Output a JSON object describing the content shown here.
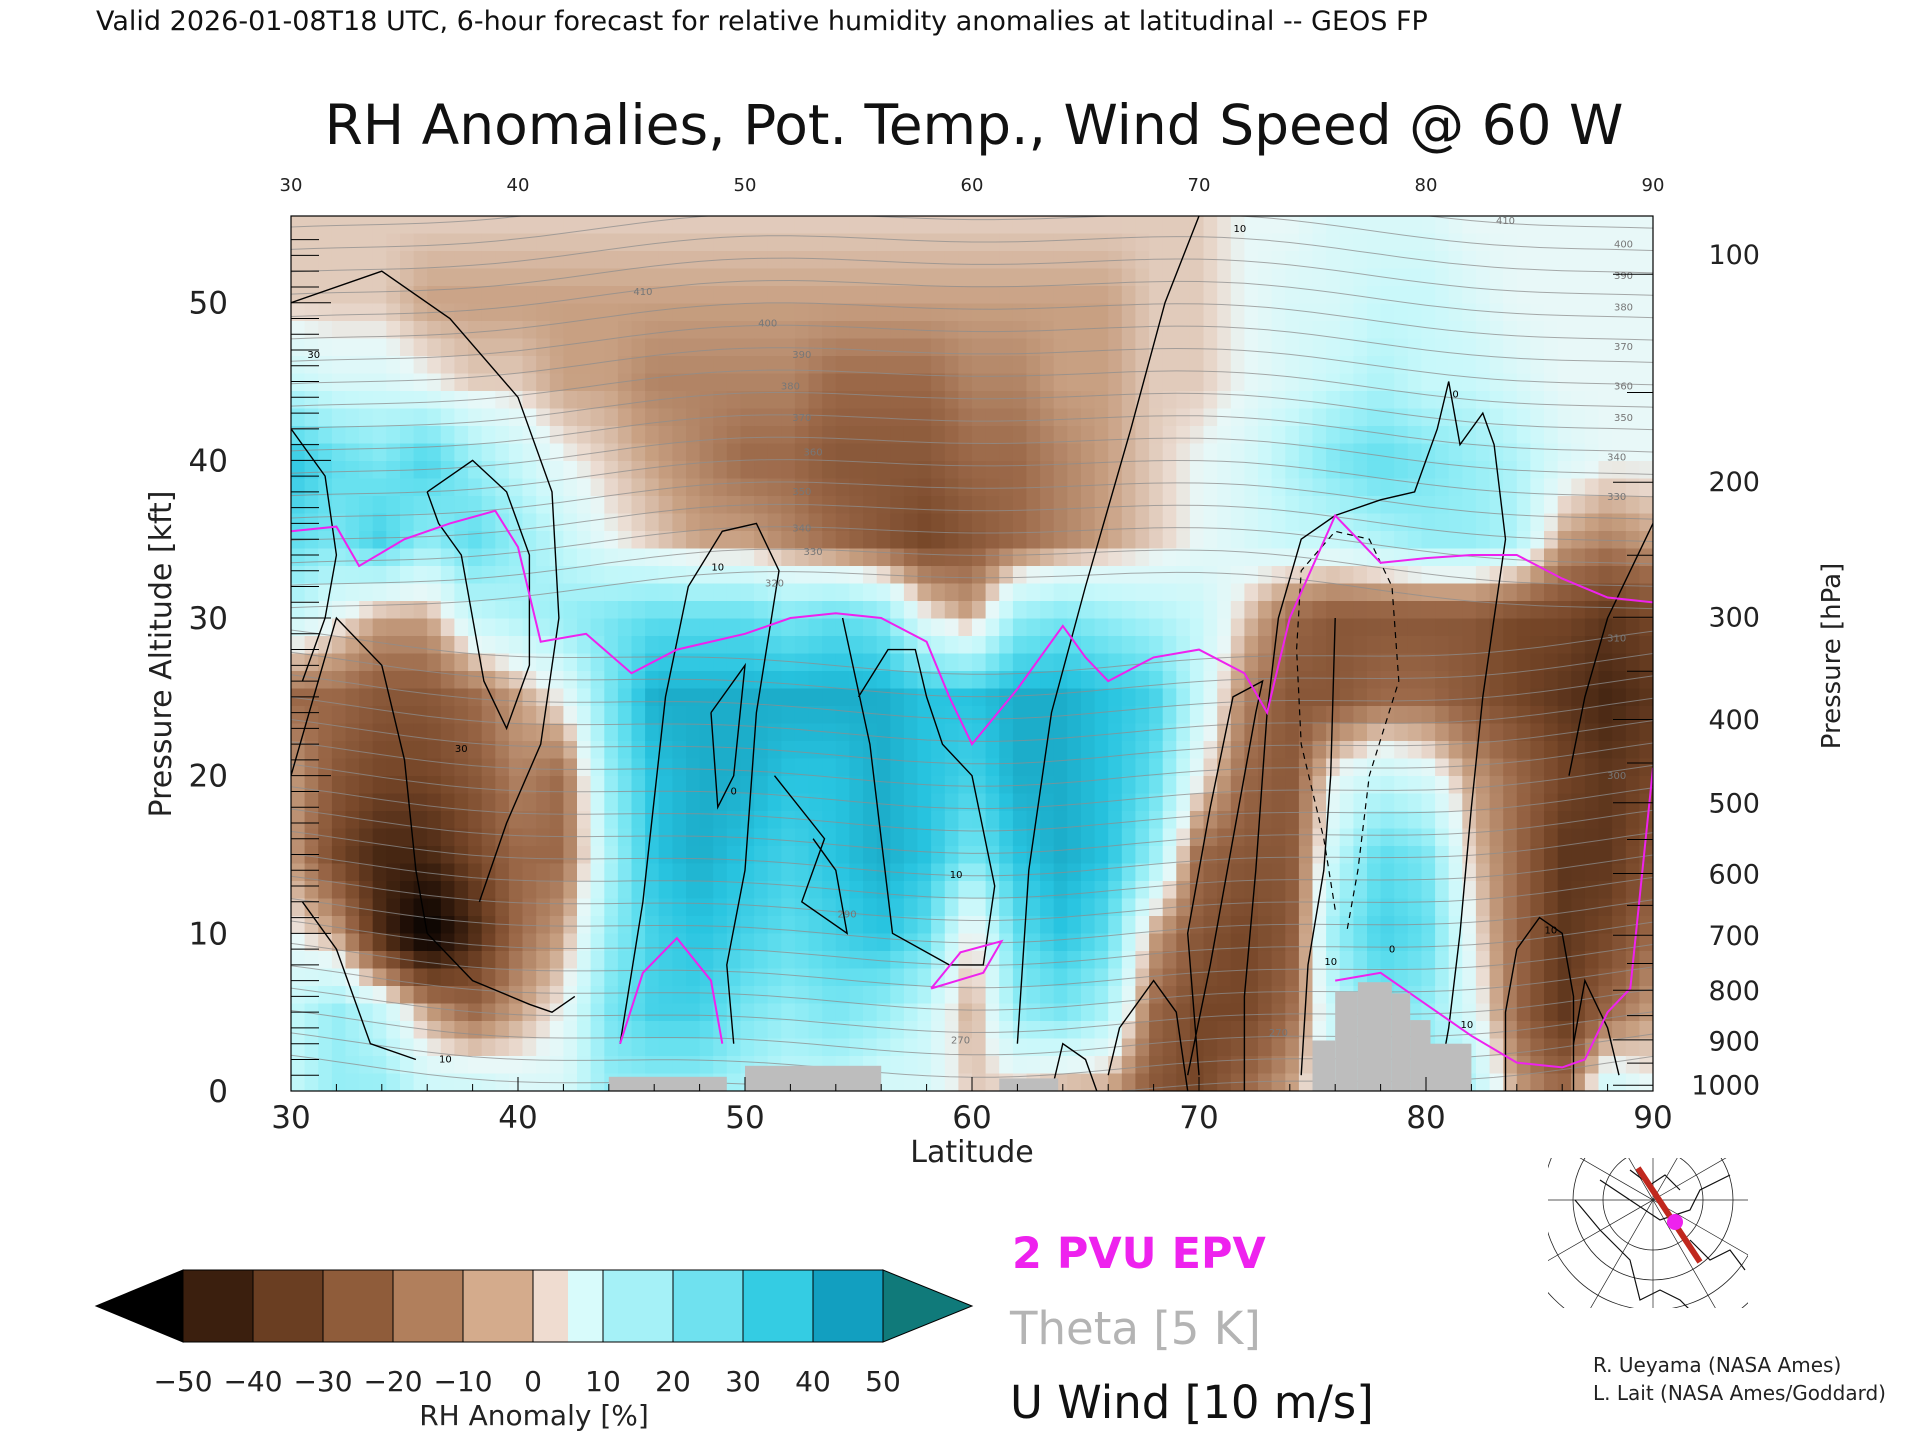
{
  "header": {
    "valid_line": "Valid 2026-01-08T18 UTC, 6-hour forecast for relative humidity anomalies at latitudinal -- GEOS FP"
  },
  "chart_data": {
    "type": "heatmap",
    "title": "RH Anomalies, Pot. Temp., Wind Speed @ 60 W",
    "xlabel": "Latitude",
    "ylabel_left": "Pressure Altitude [kft]",
    "ylabel_right": "Pressure [hPa]",
    "xlim": [
      30,
      90
    ],
    "ylim_kft": [
      0,
      55.5
    ],
    "x_ticks": [
      "30",
      "40",
      "50",
      "60",
      "70",
      "80",
      "90"
    ],
    "x_top_ticks": [
      "30",
      "40",
      "50",
      "60",
      "70",
      "80",
      "90"
    ],
    "y_left_ticks": [
      "0",
      "10",
      "20",
      "30",
      "40",
      "50"
    ],
    "y_right_ticks": [
      {
        "label": "100",
        "kft": 53.1
      },
      {
        "label": "200",
        "kft": 38.7
      },
      {
        "label": "300",
        "kft": 30.1
      },
      {
        "label": "400",
        "kft": 23.6
      },
      {
        "label": "500",
        "kft": 18.3
      },
      {
        "label": "600",
        "kft": 13.8
      },
      {
        "label": "700",
        "kft": 9.9
      },
      {
        "label": "800",
        "kft": 6.4
      },
      {
        "label": "900",
        "kft": 3.2
      },
      {
        "label": "1000",
        "kft": 0.4
      }
    ],
    "rh_anomaly_grid": {
      "lat": [
        30,
        32,
        34,
        36,
        38,
        40,
        42,
        44,
        46,
        48,
        50,
        52,
        54,
        56,
        58,
        60,
        62,
        64,
        66,
        68,
        70,
        72,
        74,
        76,
        78,
        80,
        82,
        84,
        86,
        88,
        90
      ],
      "kft": [
        0,
        5,
        10,
        15,
        20,
        25,
        30,
        35,
        40,
        45,
        50,
        55
      ],
      "values": [
        [
          10,
          20,
          20,
          10,
          10,
          5,
          5,
          20,
          20,
          20,
          15,
          10,
          10,
          5,
          5,
          -5,
          -5,
          -10,
          -10,
          -25,
          -30,
          -20,
          -10,
          10,
          15,
          20,
          15,
          -10,
          -20,
          10,
          0
        ],
        [
          10,
          20,
          10,
          -10,
          -20,
          -10,
          0,
          25,
          35,
          35,
          25,
          20,
          25,
          20,
          10,
          -10,
          20,
          25,
          15,
          -20,
          -30,
          -30,
          -20,
          10,
          25,
          20,
          5,
          -20,
          -35,
          -20,
          -10
        ],
        [
          0,
          -10,
          -40,
          -60,
          -40,
          -20,
          -10,
          20,
          35,
          40,
          35,
          30,
          35,
          40,
          30,
          -5,
          30,
          40,
          30,
          -10,
          -25,
          -30,
          -25,
          20,
          35,
          30,
          0,
          -20,
          -35,
          -30,
          -20
        ],
        [
          -10,
          -30,
          -40,
          -40,
          -30,
          -20,
          -20,
          15,
          40,
          45,
          40,
          35,
          40,
          45,
          40,
          25,
          40,
          45,
          40,
          20,
          -20,
          -25,
          -25,
          10,
          30,
          25,
          -5,
          -20,
          -35,
          -35,
          -25
        ],
        [
          -10,
          -25,
          -30,
          -30,
          -25,
          -15,
          -20,
          20,
          40,
          45,
          45,
          40,
          40,
          45,
          40,
          35,
          45,
          45,
          40,
          30,
          0,
          -20,
          -25,
          0,
          10,
          5,
          -10,
          -20,
          -30,
          -35,
          -30
        ],
        [
          -20,
          -20,
          -25,
          -25,
          -20,
          -10,
          0,
          25,
          45,
          45,
          45,
          45,
          45,
          45,
          40,
          40,
          45,
          45,
          40,
          35,
          10,
          -15,
          -25,
          -25,
          -20,
          -20,
          -25,
          -30,
          -35,
          -40,
          -35
        ],
        [
          10,
          0,
          -10,
          -10,
          10,
          15,
          20,
          25,
          30,
          30,
          30,
          25,
          30,
          25,
          0,
          -10,
          20,
          25,
          20,
          15,
          10,
          -5,
          -20,
          -25,
          -25,
          -25,
          -25,
          -30,
          -30,
          -35,
          -30
        ],
        [
          30,
          25,
          35,
          20,
          30,
          20,
          10,
          0,
          -5,
          -10,
          -10,
          -15,
          -20,
          -25,
          -30,
          -25,
          -20,
          -15,
          -10,
          -5,
          0,
          5,
          10,
          10,
          15,
          20,
          20,
          15,
          -10,
          -15,
          -10
        ],
        [
          40,
          30,
          25,
          35,
          20,
          10,
          0,
          -5,
          -10,
          -15,
          -20,
          -20,
          -25,
          -25,
          -25,
          -20,
          -20,
          -15,
          -10,
          -5,
          0,
          5,
          15,
          25,
          30,
          25,
          20,
          15,
          5,
          0,
          0
        ],
        [
          10,
          5,
          5,
          0,
          -5,
          -5,
          -10,
          -10,
          -15,
          -15,
          -15,
          -15,
          -20,
          -20,
          -20,
          -15,
          -15,
          -10,
          -10,
          -5,
          -5,
          0,
          5,
          10,
          15,
          10,
          10,
          5,
          0,
          0,
          0
        ],
        [
          -5,
          -5,
          -5,
          -10,
          -10,
          -10,
          -10,
          -10,
          -10,
          -10,
          -10,
          -10,
          -10,
          -10,
          -10,
          -10,
          -10,
          -10,
          -10,
          -5,
          -5,
          0,
          5,
          5,
          10,
          10,
          5,
          0,
          0,
          0,
          0
        ],
        [
          -5,
          -5,
          -5,
          -5,
          -5,
          -5,
          -5,
          -5,
          -5,
          -5,
          -5,
          -5,
          -5,
          -5,
          -5,
          -5,
          -5,
          -5,
          -5,
          -5,
          -5,
          0,
          0,
          5,
          5,
          5,
          0,
          0,
          0,
          0,
          0
        ]
      ]
    },
    "pv_2pvu_line": {
      "lat": [
        30,
        32,
        33,
        35,
        37,
        39,
        40,
        41,
        43,
        45,
        47,
        50,
        52,
        54,
        56,
        58,
        59,
        60,
        62,
        64,
        65,
        66,
        68,
        70,
        72,
        73,
        74,
        76,
        78,
        80,
        82,
        84,
        86,
        88,
        90
      ],
      "kft": [
        35.5,
        35.8,
        33.3,
        35.0,
        36.0,
        36.8,
        34.5,
        28.5,
        29.0,
        26.5,
        28.0,
        29.0,
        30.0,
        30.3,
        30.0,
        28.5,
        25.0,
        22.0,
        25.5,
        29.5,
        27.5,
        26.0,
        27.5,
        28.0,
        26.5,
        24.0,
        30.0,
        36.5,
        33.5,
        33.8,
        34.0,
        34.0,
        32.5,
        31.3,
        31.0
      ]
    },
    "pv_surface_line": {
      "lat": [
        44.5,
        45.5,
        47,
        48.5,
        49
      ],
      "kft": [
        3,
        7.5,
        9.7,
        7,
        3
      ]
    },
    "pv_lowlevel_line": {
      "lat": [
        58.2,
        59.5,
        61.3,
        60.5,
        58.2
      ],
      "kft": [
        6.5,
        8.8,
        9.5,
        7.5,
        6.5
      ]
    },
    "pv_boundary_right": {
      "lat": [
        76,
        78,
        80,
        82,
        84,
        86,
        87,
        88,
        89,
        90
      ],
      "kft": [
        7.0,
        7.5,
        5.5,
        3.5,
        1.8,
        1.5,
        2.0,
        5.0,
        6.5,
        20.5
      ]
    },
    "wind_contour_labels": [
      {
        "text": "30",
        "lat": 31,
        "kft": 46.5
      },
      {
        "text": "30",
        "lat": 37.5,
        "kft": 21.5
      },
      {
        "text": "10",
        "lat": 36.8,
        "kft": 1.8
      },
      {
        "text": "10",
        "lat": 48.8,
        "kft": 33.0
      },
      {
        "text": "0",
        "lat": 49.5,
        "kft": 18.8
      },
      {
        "text": "10",
        "lat": 59.3,
        "kft": 13.5
      },
      {
        "text": "10",
        "lat": 71.8,
        "kft": 54.5
      },
      {
        "text": "0",
        "lat": 81.3,
        "kft": 44.0
      },
      {
        "text": "0",
        "lat": 78.5,
        "kft": 8.8
      },
      {
        "text": "10",
        "lat": 75.8,
        "kft": 8.0
      },
      {
        "text": "10",
        "lat": 85.5,
        "kft": 10.0
      },
      {
        "text": "10",
        "lat": 81.8,
        "kft": 4.0
      }
    ],
    "theta_contour_labels": [
      {
        "text": "410",
        "lat": 45.5,
        "kft": 50.5
      },
      {
        "text": "400",
        "lat": 51,
        "kft": 48.5
      },
      {
        "text": "390",
        "lat": 52.5,
        "kft": 46.5
      },
      {
        "text": "380",
        "lat": 52,
        "kft": 44.5
      },
      {
        "text": "370",
        "lat": 52.5,
        "kft": 42.5
      },
      {
        "text": "360",
        "lat": 53,
        "kft": 40.3
      },
      {
        "text": "350",
        "lat": 52.5,
        "kft": 37.8
      },
      {
        "text": "340",
        "lat": 52.5,
        "kft": 35.5
      },
      {
        "text": "330",
        "lat": 53,
        "kft": 34.0
      },
      {
        "text": "320",
        "lat": 51.3,
        "kft": 32.0
      },
      {
        "text": "410",
        "lat": 83.5,
        "kft": 55.0
      },
      {
        "text": "400",
        "lat": 88.7,
        "kft": 53.5
      },
      {
        "text": "390",
        "lat": 88.7,
        "kft": 51.5
      },
      {
        "text": "380",
        "lat": 88.7,
        "kft": 49.5
      },
      {
        "text": "370",
        "lat": 88.7,
        "kft": 47.0
      },
      {
        "text": "360",
        "lat": 88.7,
        "kft": 44.5
      },
      {
        "text": "350",
        "lat": 88.7,
        "kft": 42.5
      },
      {
        "text": "340",
        "lat": 88.4,
        "kft": 40.0
      },
      {
        "text": "330",
        "lat": 88.4,
        "kft": 37.5
      },
      {
        "text": "310",
        "lat": 88.4,
        "kft": 28.5
      },
      {
        "text": "300",
        "lat": 88.4,
        "kft": 19.8
      },
      {
        "text": "290",
        "lat": 54.5,
        "kft": 11.0
      },
      {
        "text": "270",
        "lat": 59.5,
        "kft": 3.0
      },
      {
        "text": "270",
        "lat": 73.5,
        "kft": 3.5
      }
    ],
    "terrain_blocks": [
      {
        "lat0": 44,
        "lat1": 49.2,
        "kft": 0.9
      },
      {
        "lat0": 50,
        "lat1": 56,
        "kft": 1.6
      },
      {
        "lat0": 61.2,
        "lat1": 63.8,
        "kft": 0.8
      },
      {
        "lat0": 75,
        "lat1": 76,
        "kft": 3.2
      },
      {
        "lat0": 76,
        "lat1": 77,
        "kft": 6.3
      },
      {
        "lat0": 77,
        "lat1": 78.5,
        "kft": 6.9
      },
      {
        "lat0": 78.5,
        "lat1": 79.3,
        "kft": 6.2
      },
      {
        "lat0": 79.3,
        "lat1": 80.2,
        "kft": 4.5
      },
      {
        "lat0": 80.2,
        "lat1": 82,
        "kft": 3.0
      }
    ]
  },
  "colorbar": {
    "label": "RH Anomaly [%]",
    "ticks": [
      "−50",
      "−40",
      "−30",
      "−20",
      "−10",
      "0",
      "10",
      "20",
      "30",
      "40",
      "50"
    ],
    "colors": [
      "#000000",
      "#3b1f0e",
      "#6a3e22",
      "#8f5c3a",
      "#b17f5c",
      "#d4ab8c",
      "#efdcd0",
      "#d8fbfb",
      "#a5f1f7",
      "#6fe1ef",
      "#34cce3",
      "#129fc0",
      "#107a7a"
    ]
  },
  "legend": {
    "pv_label": "2 PVU EPV",
    "theta_label": "Theta [5 K]",
    "wind_label": "U Wind [10 m/s]",
    "pv_color": "#ee22ee",
    "theta_color": "#b4b4b4",
    "wind_color": "#000000"
  },
  "credits": {
    "line1": "R. Ueyama (NASA Ames)",
    "line2": "L. Lait (NASA Ames/Goddard)"
  },
  "map_inset": {
    "icon": "polar-map-icon",
    "track_color": "#c0281e",
    "marker_color": "#ee22ee"
  }
}
